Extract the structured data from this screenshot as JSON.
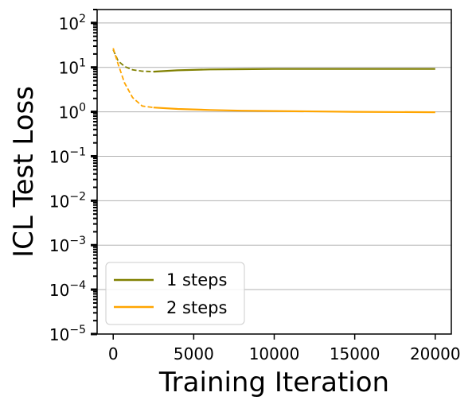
{
  "chart_data": {
    "type": "line",
    "xlabel": "Training Iteration",
    "ylabel": "ICL Test Loss",
    "xlim": [
      -1000,
      21000
    ],
    "ylim": [
      1e-05,
      200
    ],
    "yscale": "log",
    "grid": "y-major",
    "legend_placement": "lower-left",
    "x_ticks": [
      {
        "value": 0,
        "label": "0"
      },
      {
        "value": 5000,
        "label": "5000"
      },
      {
        "value": 10000,
        "label": "10000"
      },
      {
        "value": 15000,
        "label": "15000"
      },
      {
        "value": 20000,
        "label": "20000"
      }
    ],
    "y_ticks": [
      {
        "value": 100,
        "base": "10",
        "exp": "2"
      },
      {
        "value": 10,
        "base": "10",
        "exp": "1"
      },
      {
        "value": 1,
        "base": "10",
        "exp": "0"
      },
      {
        "value": 0.1,
        "base": "10",
        "exp": "−1"
      },
      {
        "value": 0.01,
        "base": "10",
        "exp": "−2"
      },
      {
        "value": 0.001,
        "base": "10",
        "exp": "−3"
      },
      {
        "value": 0.0001,
        "base": "10",
        "exp": "−4"
      },
      {
        "value": 1e-05,
        "base": "10",
        "exp": "−5"
      }
    ],
    "series": [
      {
        "name": "1 steps",
        "color": "#808000",
        "early": {
          "x": [
            0,
            300,
            700,
            1200,
            1800,
            2500
          ],
          "y": [
            25,
            14,
            10.5,
            8.8,
            8.2,
            8.0
          ]
        },
        "x": [
          2500,
          4000,
          6000,
          8000,
          10000,
          15000,
          20000
        ],
        "y": [
          8.0,
          8.6,
          9.0,
          9.1,
          9.2,
          9.2,
          9.2
        ]
      },
      {
        "name": "2 steps",
        "color": "#FFA500",
        "early": {
          "x": [
            0,
            300,
            700,
            1200,
            1800,
            2500
          ],
          "y": [
            27,
            12,
            4.5,
            2.1,
            1.35,
            1.25
          ]
        },
        "x": [
          2500,
          4000,
          6000,
          8000,
          10000,
          15000,
          20000
        ],
        "y": [
          1.25,
          1.16,
          1.1,
          1.06,
          1.04,
          1.0,
          0.98
        ]
      }
    ]
  }
}
